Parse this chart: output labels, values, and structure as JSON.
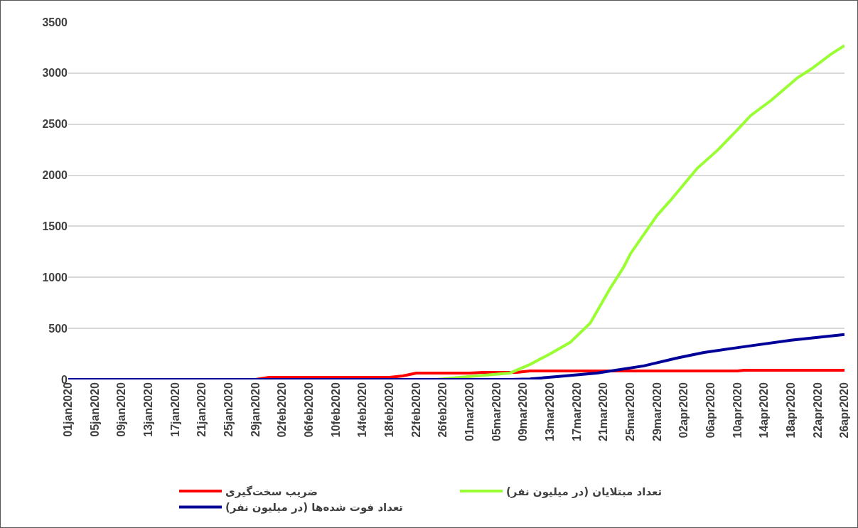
{
  "chart_data": {
    "type": "line",
    "ylim": [
      0,
      3500
    ],
    "yticks": [
      0,
      500,
      1000,
      1500,
      2000,
      2500,
      3000,
      3500
    ],
    "xlim": [
      "2020-01-01",
      "2020-04-26"
    ],
    "xticks": [
      {
        "value": "2020-01-01",
        "label": "01jan2020"
      },
      {
        "value": "2020-01-05",
        "label": "05jan2020"
      },
      {
        "value": "2020-01-09",
        "label": "09jan2020"
      },
      {
        "value": "2020-01-13",
        "label": "13jan2020"
      },
      {
        "value": "2020-01-17",
        "label": "17jan2020"
      },
      {
        "value": "2020-01-21",
        "label": "21jan2020"
      },
      {
        "value": "2020-01-25",
        "label": "25jan2020"
      },
      {
        "value": "2020-01-29",
        "label": "29jan2020"
      },
      {
        "value": "2020-02-02",
        "label": "02feb2020"
      },
      {
        "value": "2020-02-06",
        "label": "06feb2020"
      },
      {
        "value": "2020-02-10",
        "label": "10feb2020"
      },
      {
        "value": "2020-02-14",
        "label": "14feb2020"
      },
      {
        "value": "2020-02-18",
        "label": "18feb2020"
      },
      {
        "value": "2020-02-22",
        "label": "22feb2020"
      },
      {
        "value": "2020-02-26",
        "label": "26feb2020"
      },
      {
        "value": "2020-03-01",
        "label": "01mar2020"
      },
      {
        "value": "2020-03-05",
        "label": "05mar2020"
      },
      {
        "value": "2020-03-09",
        "label": "09mar2020"
      },
      {
        "value": "2020-03-13",
        "label": "13mar2020"
      },
      {
        "value": "2020-03-17",
        "label": "17mar2020"
      },
      {
        "value": "2020-03-21",
        "label": "21mar2020"
      },
      {
        "value": "2020-03-25",
        "label": "25mar2020"
      },
      {
        "value": "2020-03-29",
        "label": "29mar2020"
      },
      {
        "value": "2020-04-02",
        "label": "02apr2020"
      },
      {
        "value": "2020-04-06",
        "label": "06apr2020"
      },
      {
        "value": "2020-04-10",
        "label": "10apr2020"
      },
      {
        "value": "2020-04-14",
        "label": "14apr2020"
      },
      {
        "value": "2020-04-18",
        "label": "18apr2020"
      },
      {
        "value": "2020-04-22",
        "label": "22apr2020"
      },
      {
        "value": "2020-04-26",
        "label": "26apr2020"
      }
    ],
    "grid": "y",
    "legend": "bottom",
    "marker": "none",
    "line_style": "solid",
    "series": [
      {
        "name": "ضریب سخت‌گیری",
        "color": "#ff0000",
        "x": [
          "2020-01-01",
          "2020-01-29",
          "2020-01-31",
          "2020-02-18",
          "2020-02-20",
          "2020-02-22",
          "2020-03-01",
          "2020-03-03",
          "2020-03-08",
          "2020-03-10",
          "2020-04-10",
          "2020-04-11",
          "2020-04-26"
        ],
        "values": [
          0,
          0,
          21,
          21,
          35,
          63,
          63,
          70,
          70,
          84,
          84,
          91,
          91
        ]
      },
      {
        "name": "تعداد مبتلایان (در میلیون نفر)",
        "color": "#99ff33",
        "x": [
          "2020-01-01",
          "2020-02-25",
          "2020-03-02",
          "2020-03-07",
          "2020-03-10",
          "2020-03-13",
          "2020-03-16",
          "2020-03-19",
          "2020-03-22",
          "2020-03-24",
          "2020-03-25",
          "2020-03-29",
          "2020-03-31",
          "2020-04-04",
          "2020-04-07",
          "2020-04-10",
          "2020-04-12",
          "2020-04-15",
          "2020-04-19",
          "2020-04-21",
          "2020-04-24",
          "2020-04-26"
        ],
        "values": [
          0,
          0,
          35,
          63,
          147,
          251,
          363,
          552,
          894,
          1100,
          1230,
          1607,
          1754,
          2068,
          2243,
          2445,
          2585,
          2731,
          2955,
          3039,
          3186,
          3269
        ]
      },
      {
        "name": "تعداد فوت شده‌ها (در میلیون نفر)",
        "color": "#000099",
        "x": [
          "2020-01-01",
          "2020-03-07",
          "2020-03-10",
          "2020-03-14",
          "2020-03-20",
          "2020-03-27",
          "2020-04-01",
          "2020-04-05",
          "2020-04-11",
          "2020-04-18",
          "2020-04-26"
        ],
        "values": [
          0,
          0,
          5,
          28,
          63,
          133,
          210,
          265,
          321,
          384,
          440
        ]
      }
    ]
  }
}
